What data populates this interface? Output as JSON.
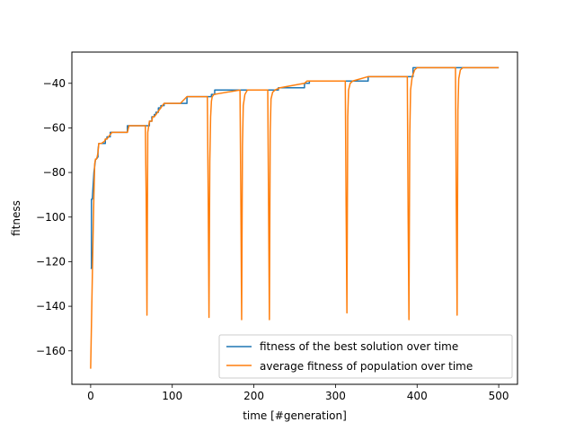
{
  "chart_data": {
    "type": "line",
    "title": "",
    "xlabel": "time [#generation]",
    "ylabel": "fitness",
    "xlim": [
      -23,
      523
    ],
    "ylim": [
      -175,
      -26
    ],
    "xticks": [
      0,
      100,
      200,
      300,
      400,
      500
    ],
    "xtick_labels": [
      "0",
      "100",
      "200",
      "300",
      "400",
      "500"
    ],
    "yticks": [
      -160,
      -140,
      -120,
      -100,
      -80,
      -60,
      -40
    ],
    "ytick_labels": [
      "−160",
      "−140",
      "−120",
      "−100",
      "−80",
      "−60",
      "−40"
    ],
    "grid": false,
    "legend_position": "lower-right",
    "series": [
      {
        "name": "fitness of the best solution over time",
        "color": "#1f77b4",
        "x": [
          0,
          1,
          1,
          2,
          3,
          4,
          5,
          6,
          7,
          9,
          9,
          10,
          13,
          13,
          18,
          18,
          20,
          20,
          24,
          24,
          30,
          30,
          45,
          45,
          58,
          58,
          72,
          72,
          75,
          75,
          78,
          78,
          80,
          80,
          83,
          83,
          86,
          86,
          90,
          90,
          95,
          95,
          118,
          118,
          148,
          148,
          152,
          152,
          230,
          230,
          262,
          262,
          268,
          268,
          340,
          340,
          395,
          395,
          500
        ],
        "y": [
          -123,
          -123,
          -92,
          -92,
          -86,
          -80,
          -77,
          -74,
          -74,
          -73,
          -70,
          -67,
          -67,
          -67,
          -67,
          -65,
          -65,
          -64,
          -64,
          -62,
          -62,
          -62,
          -62,
          -59,
          -59,
          -59,
          -59,
          -57,
          -57,
          -55,
          -55,
          -54,
          -54,
          -53,
          -53,
          -51,
          -51,
          -50,
          -50,
          -49,
          -49,
          -49,
          -49,
          -46,
          -46,
          -45,
          -45,
          -43,
          -43,
          -42,
          -42,
          -40,
          -40,
          -39,
          -39,
          -37,
          -37,
          -33,
          -33
        ]
      },
      {
        "name": "average fitness of population over time",
        "color": "#ff7f0e",
        "x": [
          0,
          1,
          2,
          3,
          4,
          5,
          6,
          7,
          8,
          9,
          10,
          12,
          13,
          17,
          18,
          20,
          22,
          24,
          26,
          30,
          45,
          47,
          58,
          60,
          67,
          68,
          69,
          70,
          72,
          75,
          76,
          78,
          80,
          82,
          84,
          86,
          88,
          90,
          94,
          96,
          110,
          118,
          143,
          144,
          145,
          146,
          147,
          148,
          149,
          151,
          183,
          184,
          185,
          186,
          187,
          189,
          192,
          217,
          218,
          219,
          220,
          221,
          223,
          226,
          232,
          262,
          265,
          312,
          313,
          314,
          315,
          316,
          318,
          321,
          340,
          388,
          389,
          390,
          391,
          392,
          394,
          397,
          400,
          447,
          448,
          449,
          450,
          451,
          453,
          456,
          500
        ],
        "y": [
          -168,
          -148,
          -128,
          -108,
          -90,
          -76,
          -74,
          -74,
          -73,
          -71,
          -67,
          -67,
          -67,
          -66,
          -65,
          -65,
          -64,
          -63,
          -62,
          -62,
          -62,
          -59,
          -59,
          -59,
          -59,
          -90,
          -144,
          -62,
          -57,
          -57,
          -55,
          -55,
          -54,
          -53,
          -52,
          -51,
          -50,
          -49,
          -49,
          -49,
          -49,
          -46,
          -46,
          -90,
          -145,
          -75,
          -55,
          -48,
          -46,
          -45,
          -43,
          -90,
          -146,
          -68,
          -50,
          -45,
          -43,
          -43,
          -95,
          -146,
          -62,
          -47,
          -44,
          -43,
          -42,
          -40,
          -39,
          -39,
          -95,
          -143,
          -55,
          -43,
          -40,
          -39,
          -37,
          -37,
          -100,
          -146,
          -63,
          -43,
          -37,
          -34,
          -33,
          -33,
          -95,
          -144,
          -52,
          -38,
          -34,
          -33,
          -33
        ]
      }
    ]
  }
}
